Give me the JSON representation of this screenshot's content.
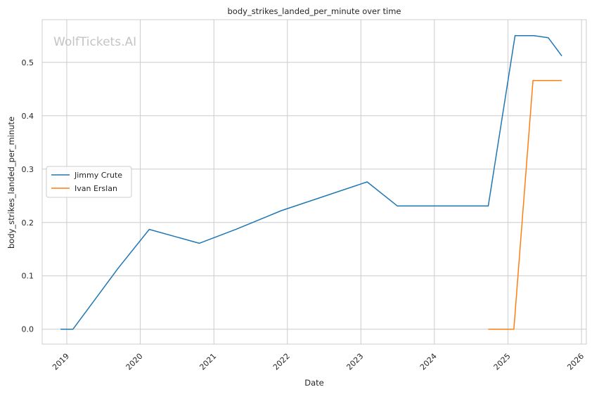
{
  "chart_data": {
    "type": "line",
    "title": "body_strikes_landed_per_minute over time",
    "xlabel": "Date",
    "ylabel": "body_strikes_landed_per_minute",
    "watermark": "WolfTickets.AI",
    "xlim": [
      "2018-09-01",
      "2026-01-25"
    ],
    "ylim": [
      -0.028,
      0.58
    ],
    "x_ticks": [
      "2019",
      "2020",
      "2021",
      "2022",
      "2023",
      "2024",
      "2025",
      "2026"
    ],
    "y_ticks": [
      "0.0",
      "0.1",
      "0.2",
      "0.3",
      "0.4",
      "0.5"
    ],
    "grid": true,
    "legend_position": "center-left",
    "series": [
      {
        "name": "Jimmy Crute",
        "color": "#1f77b4",
        "points": [
          [
            "2018-12-01",
            0.0
          ],
          [
            "2019-02-01",
            0.0
          ],
          [
            "2019-09-15",
            0.115
          ],
          [
            "2020-02-15",
            0.187
          ],
          [
            "2020-10-20",
            0.161
          ],
          [
            "2021-04-20",
            0.187
          ],
          [
            "2021-12-01",
            0.222
          ],
          [
            "2023-02-01",
            0.276
          ],
          [
            "2023-07-01",
            0.231
          ],
          [
            "2024-09-25",
            0.231
          ],
          [
            "2025-02-05",
            0.55
          ],
          [
            "2025-05-10",
            0.55
          ],
          [
            "2025-07-20",
            0.546
          ],
          [
            "2025-09-25",
            0.512
          ]
        ]
      },
      {
        "name": "Ivan Erslan",
        "color": "#ff7f0e",
        "points": [
          [
            "2024-09-25",
            0.0
          ],
          [
            "2025-01-30",
            0.0
          ],
          [
            "2025-05-05",
            0.466
          ],
          [
            "2025-09-25",
            0.466
          ]
        ]
      }
    ]
  }
}
